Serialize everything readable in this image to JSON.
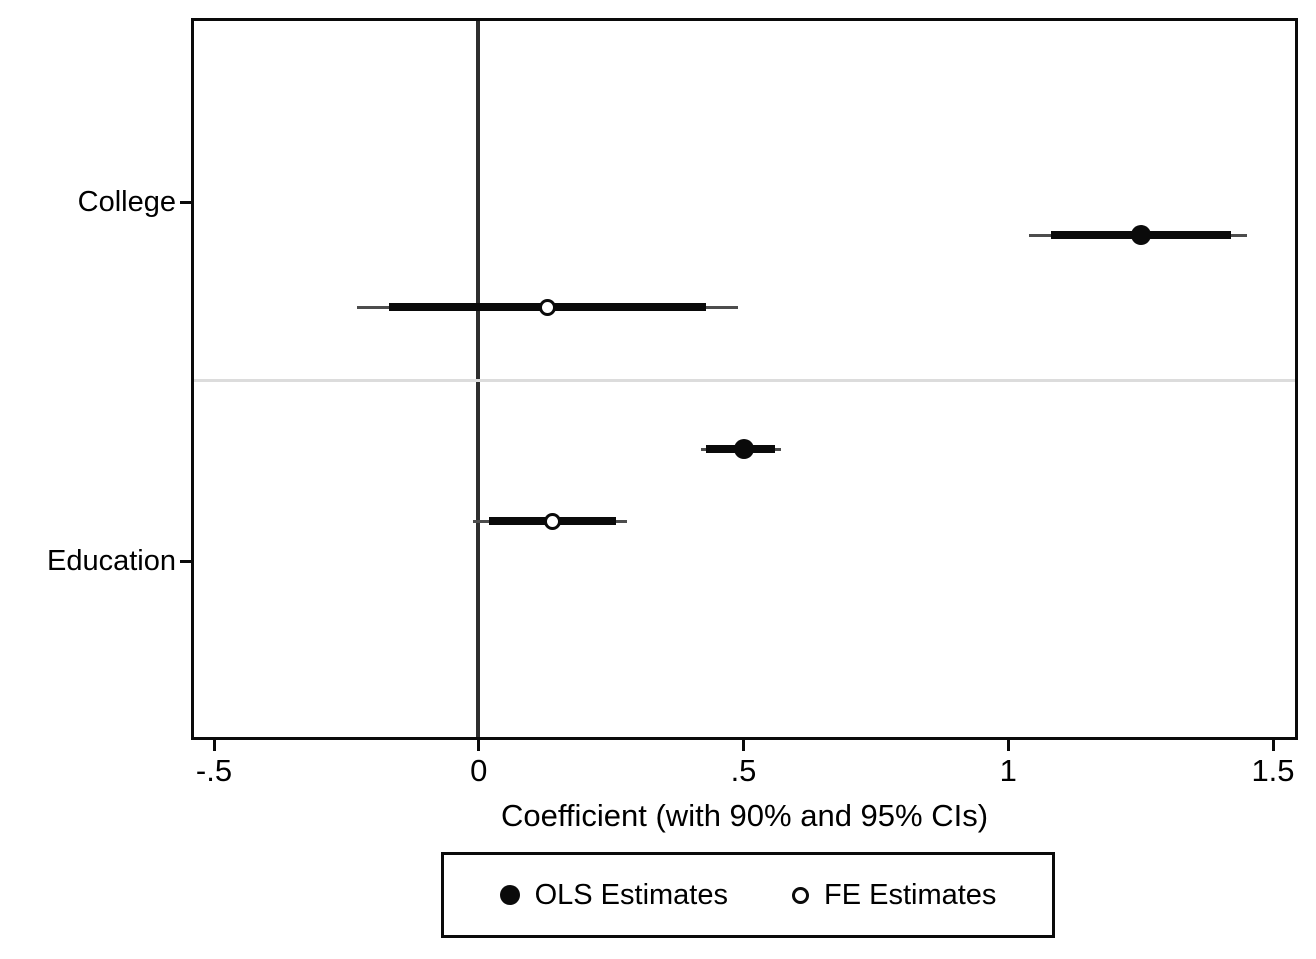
{
  "chart_data": {
    "type": "scatter",
    "subtype": "coefficient-plot-with-90-and-95-ci-error-bars",
    "title": "",
    "xlabel": "Coefficient (with 90% and 95% CIs)",
    "ylabel": "",
    "xlim": [
      -0.54,
      1.54
    ],
    "x_ticks": [
      -0.5,
      0,
      0.5,
      1,
      1.5
    ],
    "x_tick_labels": [
      "-.5",
      "0",
      ".5",
      "1",
      "1.5"
    ],
    "y_categories": [
      "College",
      "Education"
    ],
    "reference_line_x": 0,
    "grid": "off",
    "series": [
      {
        "name": "OLS Estimates",
        "marker": "filled-circle",
        "points": [
          {
            "category": "College",
            "estimate": 1.25,
            "ci90": [
              1.08,
              1.42
            ],
            "ci95": [
              1.04,
              1.45
            ]
          },
          {
            "category": "Education",
            "estimate": 0.5,
            "ci90": [
              0.43,
              0.56
            ],
            "ci95": [
              0.42,
              0.57
            ]
          }
        ]
      },
      {
        "name": "FE Estimates",
        "marker": "hollow-circle",
        "points": [
          {
            "category": "College",
            "estimate": 0.13,
            "ci90": [
              -0.17,
              0.43
            ],
            "ci95": [
              -0.23,
              0.49
            ]
          },
          {
            "category": "Education",
            "estimate": 0.14,
            "ci90": [
              0.02,
              0.26
            ],
            "ci95": [
              -0.01,
              0.28
            ]
          }
        ]
      }
    ],
    "legend": {
      "position": "bottom",
      "entries": [
        "OLS Estimates",
        "FE Estimates"
      ]
    },
    "colors": {
      "marker": "#000000",
      "ci_thick": "#0a0a0a",
      "ci_thin": "#4d4d4d",
      "reference_line": "#2e2e2e",
      "divider": "#dcdcdc",
      "background": "#ffffff"
    }
  }
}
